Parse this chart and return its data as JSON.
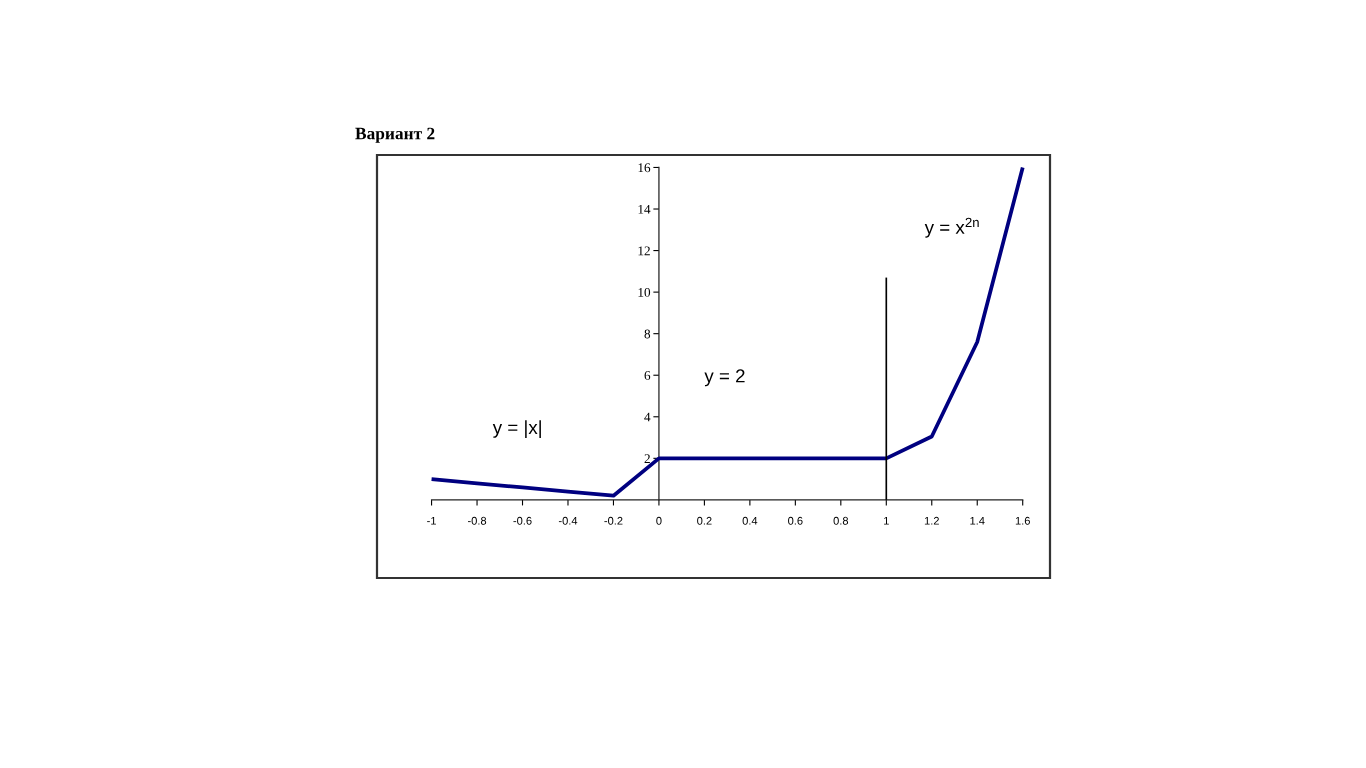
{
  "chart_data": {
    "type": "line",
    "title": "Вариант 2",
    "series": [
      {
        "x": [
          -1,
          -0.8,
          -0.6,
          -0.4,
          -0.2,
          0,
          0.2,
          0.4,
          0.6,
          0.8,
          1,
          1.2,
          1.4,
          1.6
        ],
        "values": [
          1,
          0.8,
          0.6,
          0.4,
          0.2,
          2,
          2,
          2,
          2,
          2,
          2,
          3.05,
          7.6,
          16
        ],
        "color": "#000080"
      },
      {
        "x": [
          1,
          1
        ],
        "values": [
          0,
          10.7
        ],
        "color": "#000000"
      }
    ],
    "xlim": [
      -1.24,
      1.72
    ],
    "ylim": [
      -3.76,
      16.6
    ],
    "xticks": [
      -1,
      -0.8,
      -0.6,
      -0.4,
      -0.2,
      0,
      0.2,
      0.4,
      0.6,
      0.8,
      1,
      1.2,
      1.4,
      1.6
    ],
    "yticks": [
      2,
      4,
      6,
      8,
      10,
      12,
      14,
      16
    ],
    "annotations": [
      "y = |x|",
      "y = 2",
      "y = x$^{2n}$"
    ],
    "line_style": "solid"
  }
}
